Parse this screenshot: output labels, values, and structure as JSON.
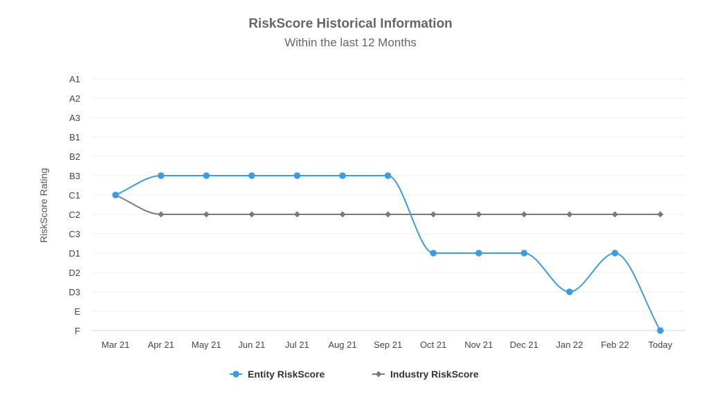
{
  "chart_data": {
    "type": "line",
    "title": "RiskScore Historical Information",
    "subtitle": "Within the last 12 Months",
    "ylabel": "RiskScore Rating",
    "xlabel": "",
    "y_categories": [
      "A1",
      "A2",
      "A3",
      "B1",
      "B2",
      "B3",
      "C1",
      "C2",
      "C3",
      "D1",
      "D2",
      "D3",
      "E",
      "F"
    ],
    "categories": [
      "Mar 21",
      "Apr 21",
      "May 21",
      "Jun 21",
      "Jul 21",
      "Aug 21",
      "Sep 21",
      "Oct 21",
      "Nov 21",
      "Dec 21",
      "Jan 22",
      "Feb 22",
      "Today"
    ],
    "series": [
      {
        "name": "Entity RiskScore",
        "color": "#3d9be0",
        "marker": "circle",
        "values": [
          "C1",
          "B3",
          "B3",
          "B3",
          "B3",
          "B3",
          "B3",
          "D1",
          "D1",
          "D1",
          "D3",
          "D1",
          "F"
        ]
      },
      {
        "name": "Industry RiskScore",
        "color": "#7a7a7a",
        "marker": "diamond",
        "values": [
          "C1",
          "C2",
          "C2",
          "C2",
          "C2",
          "C2",
          "C2",
          "C2",
          "C2",
          "C2",
          "C2",
          "C2",
          "C2"
        ]
      }
    ],
    "grid": true,
    "legend_position": "bottom-center"
  }
}
